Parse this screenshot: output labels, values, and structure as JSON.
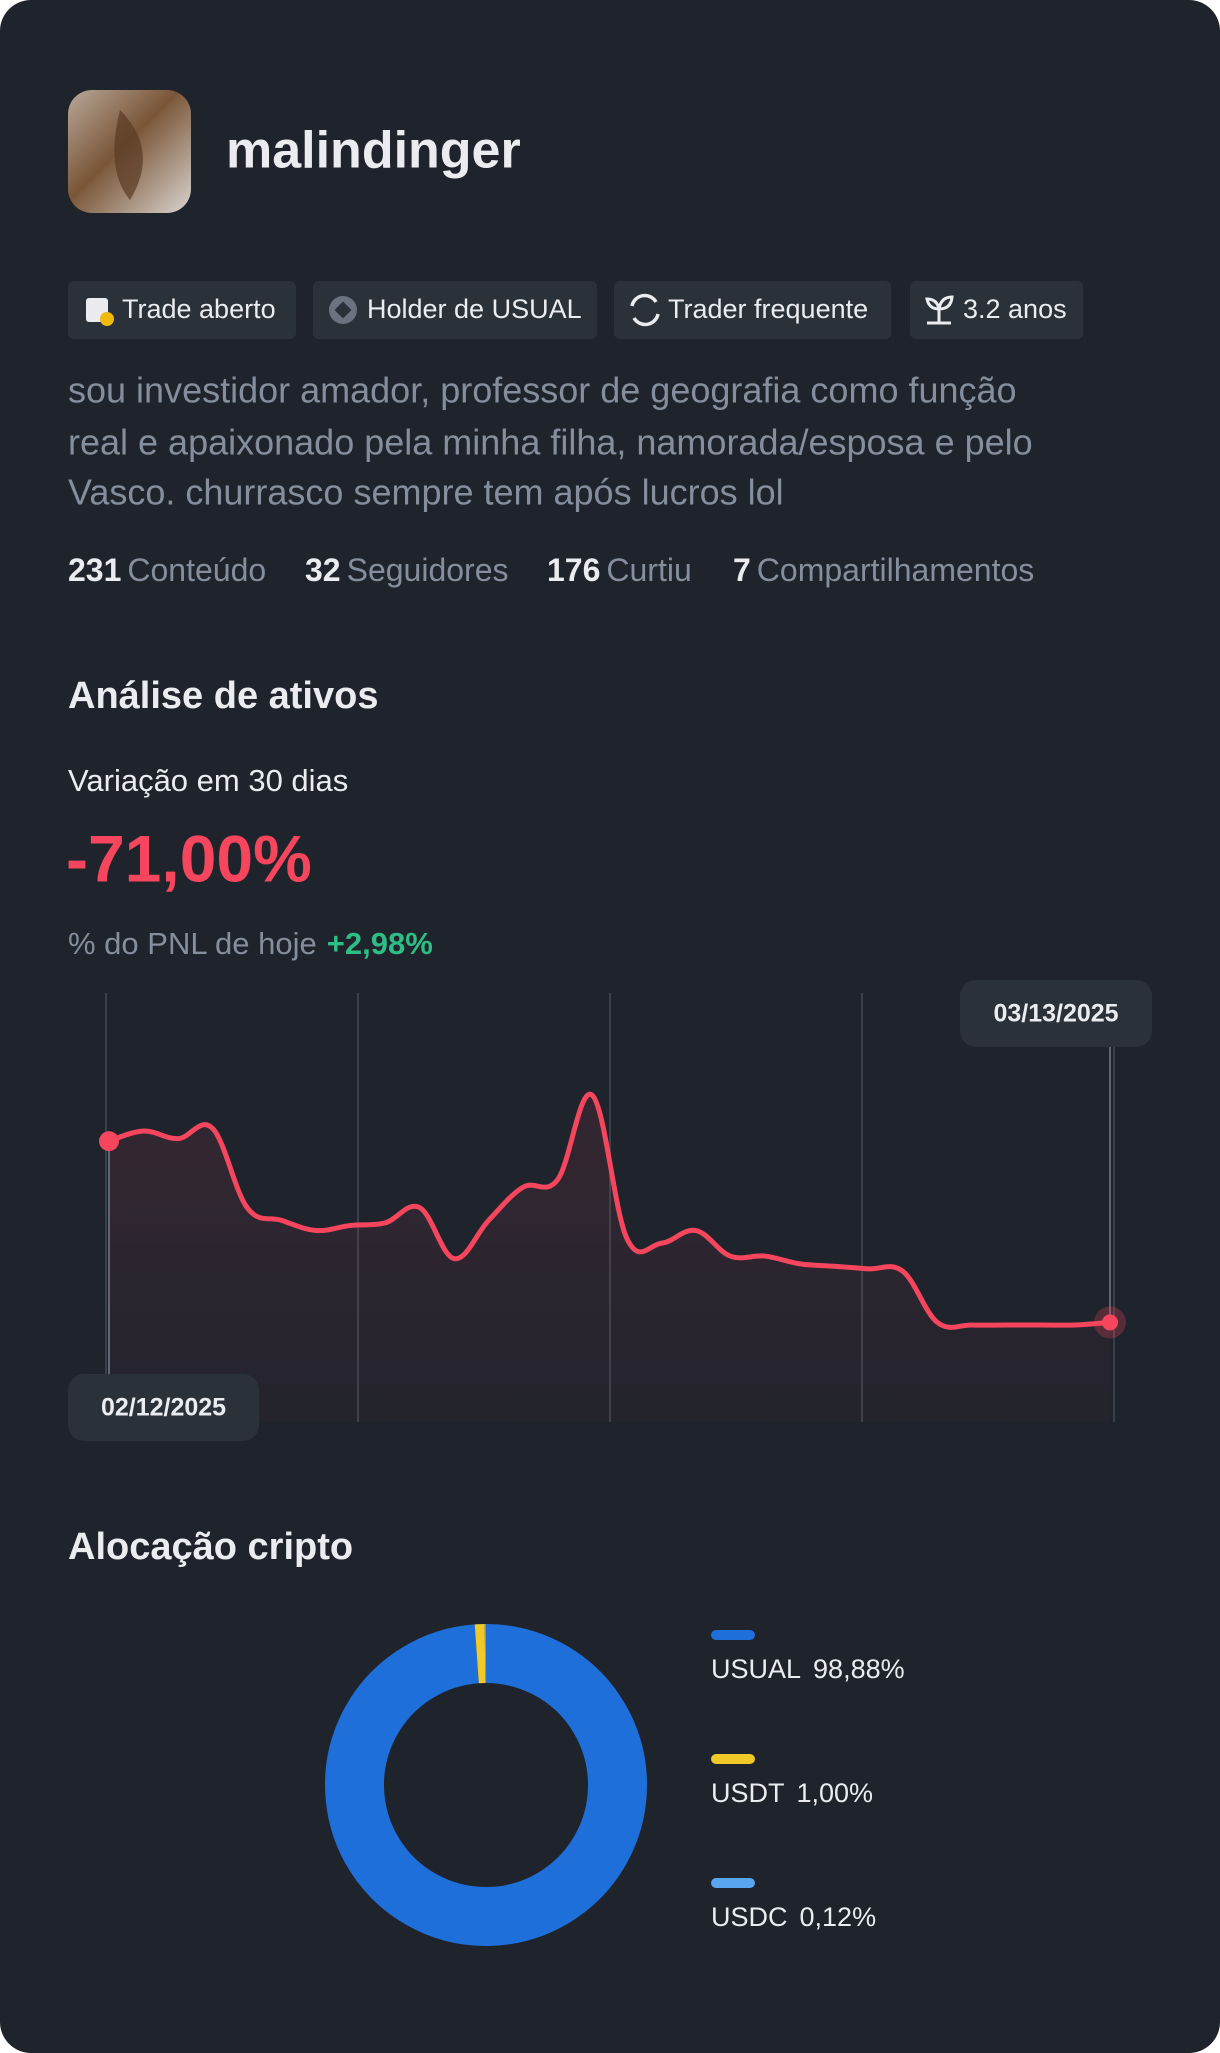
{
  "profile": {
    "username": "malindinger",
    "tags": [
      "Trade aberto",
      "Holder de USUAL",
      "Trader frequente",
      "3.2 anos"
    ],
    "bio_lines": [
      "sou investidor amador, professor de geografia como função",
      "real e apaixonado pela minha filha, namorada/esposa e pelo",
      "Vasco. churrasco sempre tem após lucros lol"
    ],
    "stats": [
      {
        "value": 231,
        "label": "Conteúdo"
      },
      {
        "value": 32,
        "label": "Seguidores"
      },
      {
        "value": 176,
        "label": "Curtiu"
      },
      {
        "value": 7,
        "label": "Compartilhamentos"
      }
    ]
  },
  "analysis": {
    "title": "Análise de ativos",
    "period_label": "Variação em 30 dias",
    "period_change": "-71,00%",
    "pnl_label": "% do PNL de hoje",
    "pnl_value": "+2,98%"
  },
  "chart_data": [
    {
      "type": "line",
      "categories": [
        "02/12/2025",
        null,
        null,
        null,
        null,
        null,
        null,
        null,
        null,
        null,
        null,
        null,
        null,
        null,
        null,
        null,
        null,
        null,
        null,
        null,
        null,
        null,
        null,
        null,
        null,
        null,
        null,
        null,
        null,
        "03/13/2025"
      ],
      "values": [
        0,
        4,
        1,
        5,
        -26,
        -31,
        -35,
        -33,
        -32,
        -26,
        -46,
        -31,
        -18,
        -15,
        18,
        -38,
        -40,
        -35,
        -45,
        -45,
        -48,
        -49,
        -50,
        -51,
        -71,
        -72,
        -72,
        -72,
        -72,
        -71
      ],
      "color": "#f6465d",
      "ylim": [
        -110,
        60
      ]
    },
    {
      "type": "donut",
      "title": "Alocação cripto",
      "categories": [
        "USUAL",
        "USDT",
        "USDC"
      ],
      "values": [
        98.88,
        1.0,
        0.12
      ],
      "value_labels": [
        "98,88%",
        "1,00%",
        "0,12%"
      ],
      "colors": [
        "#1e6fd9",
        "#f0c929",
        "#5aa5f0"
      ]
    }
  ]
}
